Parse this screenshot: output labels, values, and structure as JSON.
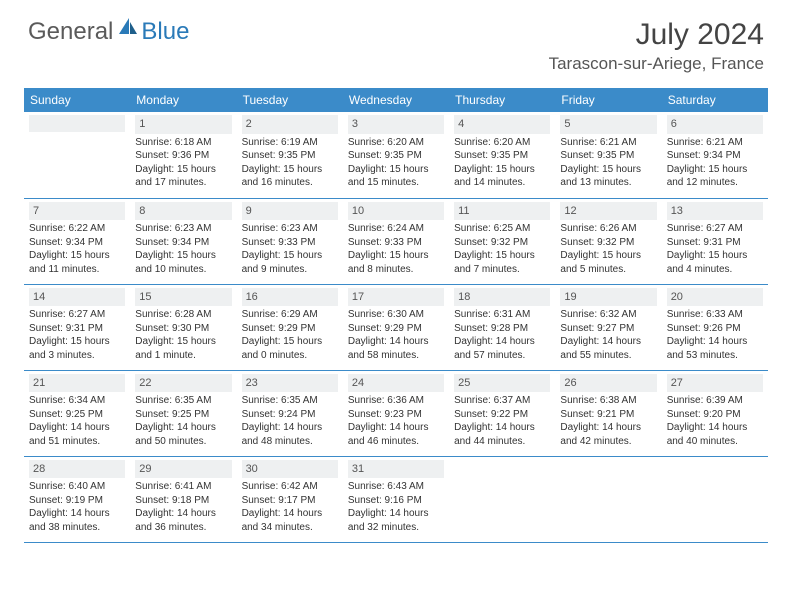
{
  "brand": {
    "general": "General",
    "blue": "Blue"
  },
  "title": "July 2024",
  "location": "Tarascon-sur-Ariege, France",
  "colors": {
    "header_bg": "#3b8bc9",
    "header_text": "#ffffff",
    "daynum_bg": "#eef0f1",
    "border": "#3b8bc9",
    "brand_gray": "#5a5a5a",
    "brand_blue": "#2a7ab8"
  },
  "weekdays": [
    "Sunday",
    "Monday",
    "Tuesday",
    "Wednesday",
    "Thursday",
    "Friday",
    "Saturday"
  ],
  "leading_blanks": 1,
  "days": [
    {
      "n": 1,
      "sunrise": "6:18 AM",
      "sunset": "9:36 PM",
      "daylight": "15 hours and 17 minutes."
    },
    {
      "n": 2,
      "sunrise": "6:19 AM",
      "sunset": "9:35 PM",
      "daylight": "15 hours and 16 minutes."
    },
    {
      "n": 3,
      "sunrise": "6:20 AM",
      "sunset": "9:35 PM",
      "daylight": "15 hours and 15 minutes."
    },
    {
      "n": 4,
      "sunrise": "6:20 AM",
      "sunset": "9:35 PM",
      "daylight": "15 hours and 14 minutes."
    },
    {
      "n": 5,
      "sunrise": "6:21 AM",
      "sunset": "9:35 PM",
      "daylight": "15 hours and 13 minutes."
    },
    {
      "n": 6,
      "sunrise": "6:21 AM",
      "sunset": "9:34 PM",
      "daylight": "15 hours and 12 minutes."
    },
    {
      "n": 7,
      "sunrise": "6:22 AM",
      "sunset": "9:34 PM",
      "daylight": "15 hours and 11 minutes."
    },
    {
      "n": 8,
      "sunrise": "6:23 AM",
      "sunset": "9:34 PM",
      "daylight": "15 hours and 10 minutes."
    },
    {
      "n": 9,
      "sunrise": "6:23 AM",
      "sunset": "9:33 PM",
      "daylight": "15 hours and 9 minutes."
    },
    {
      "n": 10,
      "sunrise": "6:24 AM",
      "sunset": "9:33 PM",
      "daylight": "15 hours and 8 minutes."
    },
    {
      "n": 11,
      "sunrise": "6:25 AM",
      "sunset": "9:32 PM",
      "daylight": "15 hours and 7 minutes."
    },
    {
      "n": 12,
      "sunrise": "6:26 AM",
      "sunset": "9:32 PM",
      "daylight": "15 hours and 5 minutes."
    },
    {
      "n": 13,
      "sunrise": "6:27 AM",
      "sunset": "9:31 PM",
      "daylight": "15 hours and 4 minutes."
    },
    {
      "n": 14,
      "sunrise": "6:27 AM",
      "sunset": "9:31 PM",
      "daylight": "15 hours and 3 minutes."
    },
    {
      "n": 15,
      "sunrise": "6:28 AM",
      "sunset": "9:30 PM",
      "daylight": "15 hours and 1 minute."
    },
    {
      "n": 16,
      "sunrise": "6:29 AM",
      "sunset": "9:29 PM",
      "daylight": "15 hours and 0 minutes."
    },
    {
      "n": 17,
      "sunrise": "6:30 AM",
      "sunset": "9:29 PM",
      "daylight": "14 hours and 58 minutes."
    },
    {
      "n": 18,
      "sunrise": "6:31 AM",
      "sunset": "9:28 PM",
      "daylight": "14 hours and 57 minutes."
    },
    {
      "n": 19,
      "sunrise": "6:32 AM",
      "sunset": "9:27 PM",
      "daylight": "14 hours and 55 minutes."
    },
    {
      "n": 20,
      "sunrise": "6:33 AM",
      "sunset": "9:26 PM",
      "daylight": "14 hours and 53 minutes."
    },
    {
      "n": 21,
      "sunrise": "6:34 AM",
      "sunset": "9:25 PM",
      "daylight": "14 hours and 51 minutes."
    },
    {
      "n": 22,
      "sunrise": "6:35 AM",
      "sunset": "9:25 PM",
      "daylight": "14 hours and 50 minutes."
    },
    {
      "n": 23,
      "sunrise": "6:35 AM",
      "sunset": "9:24 PM",
      "daylight": "14 hours and 48 minutes."
    },
    {
      "n": 24,
      "sunrise": "6:36 AM",
      "sunset": "9:23 PM",
      "daylight": "14 hours and 46 minutes."
    },
    {
      "n": 25,
      "sunrise": "6:37 AM",
      "sunset": "9:22 PM",
      "daylight": "14 hours and 44 minutes."
    },
    {
      "n": 26,
      "sunrise": "6:38 AM",
      "sunset": "9:21 PM",
      "daylight": "14 hours and 42 minutes."
    },
    {
      "n": 27,
      "sunrise": "6:39 AM",
      "sunset": "9:20 PM",
      "daylight": "14 hours and 40 minutes."
    },
    {
      "n": 28,
      "sunrise": "6:40 AM",
      "sunset": "9:19 PM",
      "daylight": "14 hours and 38 minutes."
    },
    {
      "n": 29,
      "sunrise": "6:41 AM",
      "sunset": "9:18 PM",
      "daylight": "14 hours and 36 minutes."
    },
    {
      "n": 30,
      "sunrise": "6:42 AM",
      "sunset": "9:17 PM",
      "daylight": "14 hours and 34 minutes."
    },
    {
      "n": 31,
      "sunrise": "6:43 AM",
      "sunset": "9:16 PM",
      "daylight": "14 hours and 32 minutes."
    }
  ],
  "labels": {
    "sunrise_prefix": "Sunrise: ",
    "sunset_prefix": "Sunset: ",
    "daylight_prefix": "Daylight: "
  }
}
